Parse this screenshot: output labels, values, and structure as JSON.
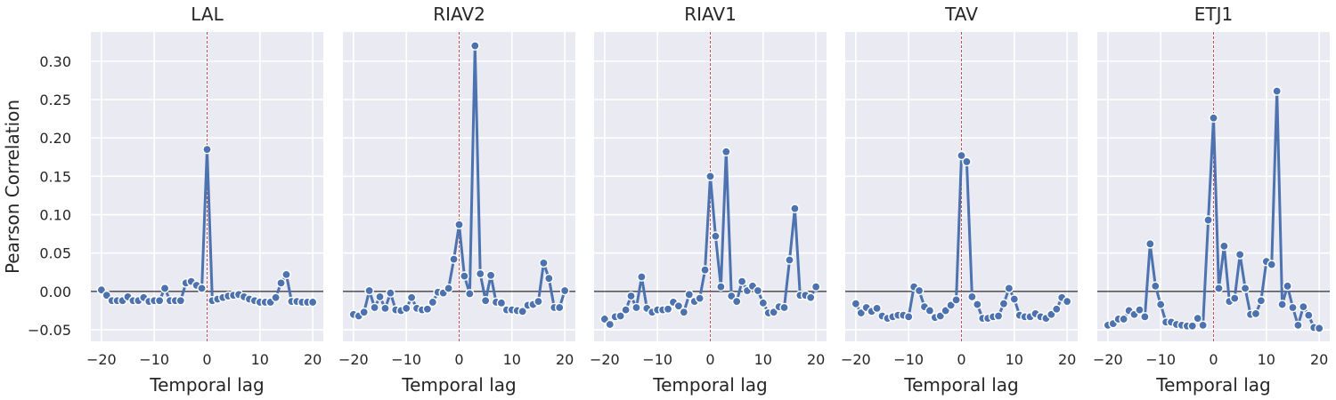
{
  "figure": {
    "ylabel": "Pearson Correlation",
    "xlabel": "Temporal lag"
  },
  "colors": {
    "series": "#4c72b0",
    "lag_zero_line": "#c44e52",
    "panel_background": "#eaeaf2",
    "grid": "#ffffff",
    "zero_line": "#000000"
  },
  "chart_data": [
    {
      "type": "line",
      "title": "LAL",
      "xlabel": "Temporal lag",
      "ylabel": "Pearson Correlation",
      "xlim": [
        -22,
        22
      ],
      "ylim": [
        -0.065,
        0.338
      ],
      "xticks": [
        -20,
        -10,
        0,
        10,
        20
      ],
      "yticks": [
        -0.05,
        0.0,
        0.05,
        0.1,
        0.15,
        0.2,
        0.25,
        0.3
      ],
      "grid": true,
      "x": [
        -20,
        -19,
        -18,
        -17,
        -16,
        -15,
        -14,
        -13,
        -12,
        -11,
        -10,
        -9,
        -8,
        -7,
        -6,
        -5,
        -4,
        -3,
        -2,
        -1,
        0,
        1,
        2,
        3,
        4,
        5,
        6,
        7,
        8,
        9,
        10,
        11,
        12,
        13,
        14,
        15,
        16,
        17,
        18,
        19,
        20
      ],
      "values": [
        0.002,
        -0.005,
        -0.012,
        -0.012,
        -0.012,
        -0.007,
        -0.012,
        -0.012,
        -0.008,
        -0.013,
        -0.012,
        -0.012,
        0.004,
        -0.012,
        -0.012,
        -0.012,
        0.011,
        0.013,
        0.008,
        0.004,
        0.185,
        -0.012,
        -0.01,
        -0.008,
        -0.006,
        -0.005,
        -0.004,
        -0.007,
        -0.01,
        -0.012,
        -0.014,
        -0.014,
        -0.014,
        -0.008,
        0.011,
        0.022,
        -0.013,
        -0.013,
        -0.014,
        -0.014,
        -0.014
      ]
    },
    {
      "type": "line",
      "title": "RIAV2",
      "xlabel": "Temporal lag",
      "xlim": [
        -22,
        22
      ],
      "ylim": [
        -0.065,
        0.338
      ],
      "xticks": [
        -20,
        -10,
        0,
        10,
        20
      ],
      "grid": true,
      "x": [
        -20,
        -19,
        -18,
        -17,
        -16,
        -15,
        -14,
        -13,
        -12,
        -11,
        -10,
        -9,
        -8,
        -7,
        -6,
        -5,
        -4,
        -3,
        -2,
        -1,
        0,
        1,
        2,
        3,
        4,
        5,
        6,
        7,
        8,
        9,
        10,
        11,
        12,
        13,
        14,
        15,
        16,
        17,
        18,
        19,
        20
      ],
      "values": [
        -0.03,
        -0.032,
        -0.027,
        0.001,
        -0.021,
        -0.007,
        -0.022,
        -0.002,
        -0.024,
        -0.025,
        -0.022,
        -0.008,
        -0.022,
        -0.024,
        -0.023,
        -0.014,
        -0.001,
        -0.002,
        0.004,
        0.042,
        0.087,
        0.02,
        -0.003,
        0.32,
        0.023,
        -0.012,
        0.021,
        -0.014,
        -0.015,
        -0.024,
        -0.024,
        -0.025,
        -0.026,
        -0.018,
        -0.017,
        -0.013,
        0.037,
        0.017,
        -0.021,
        -0.021,
        0.001
      ]
    },
    {
      "type": "line",
      "title": "RIAV1",
      "xlabel": "Temporal lag",
      "xlim": [
        -22,
        22
      ],
      "ylim": [
        -0.065,
        0.338
      ],
      "xticks": [
        -20,
        -10,
        0,
        10,
        20
      ],
      "grid": true,
      "x": [
        -20,
        -19,
        -18,
        -17,
        -16,
        -15,
        -14,
        -13,
        -12,
        -11,
        -10,
        -9,
        -8,
        -7,
        -6,
        -5,
        -4,
        -3,
        -2,
        -1,
        0,
        1,
        2,
        3,
        4,
        5,
        6,
        7,
        8,
        9,
        10,
        11,
        12,
        13,
        14,
        15,
        16,
        17,
        18,
        19,
        20
      ],
      "values": [
        -0.036,
        -0.043,
        -0.033,
        -0.032,
        -0.024,
        -0.006,
        -0.021,
        0.019,
        -0.022,
        -0.027,
        -0.024,
        -0.024,
        -0.023,
        -0.014,
        -0.019,
        -0.027,
        -0.004,
        -0.013,
        -0.009,
        0.028,
        0.15,
        0.072,
        0.006,
        0.182,
        -0.006,
        -0.013,
        0.013,
        0.001,
        0.007,
        0.001,
        -0.015,
        -0.028,
        -0.027,
        -0.02,
        -0.021,
        0.041,
        0.108,
        -0.005,
        -0.005,
        -0.008,
        0.006
      ]
    },
    {
      "type": "line",
      "title": "TAV",
      "xlabel": "Temporal lag",
      "xlim": [
        -22,
        22
      ],
      "ylim": [
        -0.065,
        0.338
      ],
      "xticks": [
        -20,
        -10,
        0,
        10,
        20
      ],
      "grid": true,
      "x": [
        -20,
        -19,
        -18,
        -17,
        -16,
        -15,
        -14,
        -13,
        -12,
        -11,
        -10,
        -9,
        -8,
        -7,
        -6,
        -5,
        -4,
        -3,
        -2,
        -1,
        0,
        1,
        2,
        3,
        4,
        5,
        6,
        7,
        8,
        9,
        10,
        11,
        12,
        13,
        14,
        15,
        16,
        17,
        18,
        19,
        20
      ],
      "values": [
        -0.016,
        -0.028,
        -0.021,
        -0.026,
        -0.022,
        -0.032,
        -0.035,
        -0.033,
        -0.031,
        -0.031,
        -0.033,
        0.006,
        0.001,
        -0.02,
        -0.025,
        -0.034,
        -0.032,
        -0.025,
        -0.018,
        -0.011,
        0.177,
        0.169,
        -0.007,
        -0.017,
        -0.035,
        -0.035,
        -0.033,
        -0.032,
        -0.016,
        0.004,
        -0.01,
        -0.031,
        -0.033,
        -0.033,
        -0.029,
        -0.033,
        -0.035,
        -0.03,
        -0.023,
        -0.008,
        -0.013
      ]
    },
    {
      "type": "line",
      "title": "ETJ1",
      "xlabel": "Temporal lag",
      "xlim": [
        -22,
        22
      ],
      "ylim": [
        -0.065,
        0.338
      ],
      "xticks": [
        -20,
        -10,
        0,
        10,
        20
      ],
      "grid": true,
      "x": [
        -20,
        -19,
        -18,
        -17,
        -16,
        -15,
        -14,
        -13,
        -12,
        -11,
        -10,
        -9,
        -8,
        -7,
        -6,
        -5,
        -4,
        -3,
        -2,
        -1,
        0,
        1,
        2,
        3,
        4,
        5,
        6,
        7,
        8,
        9,
        10,
        11,
        12,
        13,
        14,
        15,
        16,
        17,
        18,
        19,
        20
      ],
      "values": [
        -0.044,
        -0.042,
        -0.036,
        -0.036,
        -0.025,
        -0.03,
        -0.024,
        -0.033,
        0.062,
        0.007,
        -0.017,
        -0.04,
        -0.04,
        -0.043,
        -0.044,
        -0.045,
        -0.045,
        -0.035,
        -0.044,
        0.093,
        0.226,
        0.004,
        0.059,
        -0.013,
        -0.009,
        0.048,
        0.004,
        -0.03,
        -0.029,
        -0.012,
        0.039,
        0.035,
        0.261,
        -0.017,
        0.007,
        -0.021,
        -0.044,
        -0.02,
        -0.031,
        -0.047,
        -0.048
      ]
    }
  ]
}
